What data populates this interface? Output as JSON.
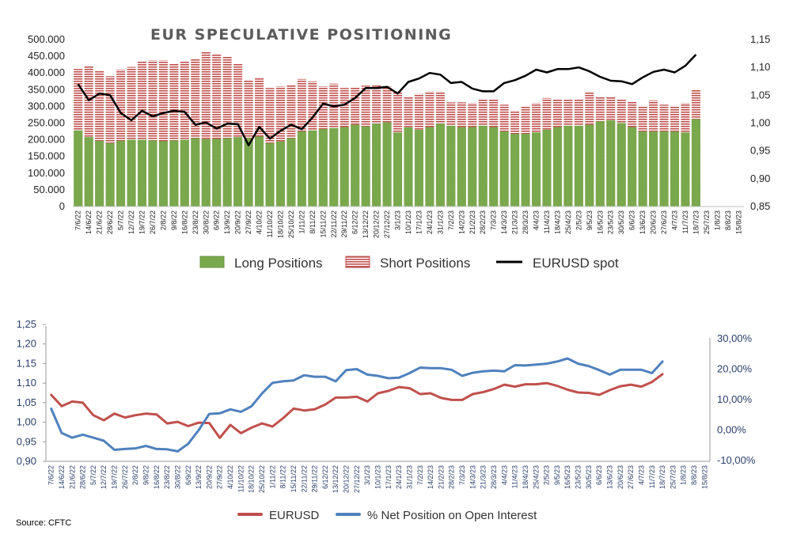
{
  "source": "Source: CFTC",
  "chart_data": [
    {
      "type": "bar",
      "stacked": true,
      "title": "EUR SPECULATIVE POSITIONING",
      "categories": [
        "7/6/22",
        "14/6/22",
        "21/6/22",
        "28/6/22",
        "5/7/22",
        "12/7/22",
        "19/7/22",
        "26/7/22",
        "2/8/22",
        "9/8/22",
        "16/8/22",
        "23/8/22",
        "30/8/22",
        "6/9/22",
        "13/9/22",
        "20/9/22",
        "27/9/22",
        "4/10/22",
        "11/10/22",
        "18/10/22",
        "25/10/22",
        "1/11/22",
        "8/11/22",
        "15/11/22",
        "22/11/22",
        "29/11/22",
        "6/12/22",
        "13/12/22",
        "20/12/22",
        "27/12/22",
        "3/1/23",
        "10/1/23",
        "17/1/23",
        "24/1/23",
        "31/1/23",
        "7/2/23",
        "14/2/23",
        "21/2/23",
        "28/2/23",
        "7/3/23",
        "14/3/23",
        "21/3/23",
        "28/3/23",
        "4/4/23",
        "11/4/23",
        "18/4/23",
        "25/4/23",
        "2/5/23",
        "9/5/23",
        "16/5/23",
        "23/5/23",
        "30/5/23",
        "6/6/23",
        "13/6/23",
        "20/6/23",
        "27/6/23",
        "4/7/23",
        "11/7/23",
        "18/7/23",
        "25/7/23",
        "1/8/23",
        "8/8/23",
        "15/8/23"
      ],
      "series": [
        {
          "name": "Long Positions",
          "color": "#7aa84d",
          "values": [
            228,
            208,
            197,
            190,
            197,
            200,
            200,
            198,
            196,
            198,
            200,
            205,
            202,
            203,
            205,
            208,
            205,
            210,
            190,
            195,
            205,
            225,
            228,
            232,
            235,
            238,
            245,
            240,
            248,
            252,
            222,
            237,
            230,
            238,
            248,
            242,
            238,
            238,
            242,
            238,
            225,
            218,
            218,
            222,
            230,
            238,
            242,
            242,
            245,
            255,
            258,
            250,
            238,
            225,
            225,
            225,
            225,
            222,
            262,
            null,
            null,
            null,
            null
          ]
        },
        {
          "name": "Short Positions",
          "color": "#c0504d",
          "values": [
            412,
            420,
            406,
            390,
            410,
            418,
            435,
            438,
            438,
            428,
            435,
            442,
            465,
            455,
            450,
            428,
            380,
            385,
            355,
            360,
            365,
            382,
            375,
            360,
            368,
            355,
            358,
            362,
            365,
            360,
            345,
            328,
            338,
            345,
            345,
            312,
            312,
            310,
            320,
            320,
            305,
            288,
            300,
            310,
            325,
            320,
            320,
            320,
            342,
            330,
            330,
            320,
            315,
            302,
            318,
            305,
            302,
            310,
            350,
            null,
            null,
            null,
            null
          ]
        },
        {
          "name": "EURUSD spot",
          "color": "#000000",
          "axis": "right",
          "values": [
            1.07,
            1.041,
            1.053,
            1.05,
            1.018,
            1.005,
            1.022,
            1.012,
            1.018,
            1.022,
            1.02,
            0.997,
            1.001,
            0.99,
            0.999,
            0.998,
            0.96,
            0.993,
            0.972,
            0.986,
            0.997,
            0.989,
            1.01,
            1.035,
            1.03,
            1.033,
            1.045,
            1.063,
            1.063,
            1.065,
            1.053,
            1.074,
            1.08,
            1.09,
            1.087,
            1.072,
            1.074,
            1.062,
            1.057,
            1.057,
            1.072,
            1.077,
            1.085,
            1.096,
            1.091,
            1.097,
            1.097,
            1.1,
            1.093,
            1.083,
            1.076,
            1.075,
            1.07,
            1.082,
            1.092,
            1.096,
            1.091,
            1.103,
            1.123,
            null,
            null,
            null,
            null
          ]
        }
      ],
      "y_left": {
        "ylim": [
          0,
          500000
        ],
        "ticks": [
          "0",
          "50.000",
          "100.000",
          "150.000",
          "200.000",
          "250.000",
          "300.000",
          "350.000",
          "400.000",
          "450.000",
          "500.000"
        ]
      },
      "y_right": {
        "ylim": [
          0.85,
          1.15
        ],
        "ticks": [
          "0,85",
          "0,90",
          "0,95",
          "1,00",
          "1,05",
          "1,10",
          "1,15"
        ]
      },
      "value_scale": 1000,
      "legend": {
        "position": "bottom",
        "items": [
          "Long Positions",
          "Short Positions",
          "EURUSD spot"
        ]
      },
      "grid": false
    },
    {
      "type": "line",
      "categories": [
        "7/6/22",
        "14/6/22",
        "21/6/22",
        "28/6/22",
        "5/7/22",
        "12/7/22",
        "19/7/22",
        "26/7/22",
        "2/8/22",
        "9/8/22",
        "16/8/22",
        "23/8/22",
        "30/8/22",
        "6/9/22",
        "13/9/22",
        "20/9/22",
        "27/9/22",
        "4/10/22",
        "11/10/22",
        "18/10/22",
        "25/10/22",
        "1/11/22",
        "8/11/22",
        "15/11/22",
        "22/11/22",
        "29/11/22",
        "6/12/22",
        "13/12/22",
        "20/12/22",
        "27/12/22",
        "3/1/23",
        "10/1/23",
        "17/1/23",
        "24/1/23",
        "31/1/23",
        "7/2/23",
        "14/2/23",
        "21/2/23",
        "28/2/23",
        "7/3/23",
        "14/3/23",
        "21/3/23",
        "28/3/23",
        "4/4/23",
        "11/4/23",
        "18/4/23",
        "25/4/23",
        "2/5/23",
        "9/5/23",
        "16/5/23",
        "23/5/23",
        "30/5/23",
        "6/6/23",
        "13/6/23",
        "20/6/23",
        "27/6/23",
        "4/7/23",
        "11/7/23",
        "18/7/23",
        "25/7/23",
        "1/8/23",
        "8/8/23",
        "15/8/23"
      ],
      "series": [
        {
          "name": "EURUSD",
          "color": "#c0504d",
          "axis": "left",
          "values": [
            1.07,
            1.041,
            1.053,
            1.05,
            1.018,
            1.005,
            1.022,
            1.012,
            1.018,
            1.022,
            1.02,
            0.997,
            1.001,
            0.99,
            0.999,
            0.998,
            0.96,
            0.993,
            0.972,
            0.986,
            0.997,
            0.989,
            1.01,
            1.035,
            1.03,
            1.033,
            1.045,
            1.063,
            1.063,
            1.065,
            1.053,
            1.074,
            1.08,
            1.09,
            1.087,
            1.072,
            1.074,
            1.062,
            1.057,
            1.057,
            1.072,
            1.077,
            1.085,
            1.096,
            1.091,
            1.097,
            1.097,
            1.1,
            1.093,
            1.083,
            1.076,
            1.075,
            1.07,
            1.082,
            1.092,
            1.096,
            1.091,
            1.103,
            1.123,
            null,
            null,
            null,
            null
          ]
        },
        {
          "name": "% Net Position on Open Interest",
          "color": "#4f81bd",
          "axis": "right",
          "values": [
            7,
            -1,
            -2.5,
            -1.5,
            -2.5,
            -3.5,
            -6.5,
            -6.2,
            -6,
            -5.2,
            -6.2,
            -6.3,
            -7,
            -4.5,
            0,
            5.3,
            5.5,
            6.8,
            6,
            7.8,
            12,
            15.5,
            16,
            16.3,
            18,
            17.5,
            17.5,
            16,
            19.7,
            20,
            18.2,
            17.8,
            17,
            17.2,
            18.7,
            20.5,
            20.3,
            20.3,
            19.8,
            17.8,
            18.8,
            19.3,
            19.5,
            19.3,
            21.3,
            21.2,
            21.5,
            21.8,
            22.5,
            23.5,
            21.8,
            21,
            19.7,
            18.2,
            19.8,
            19.8,
            19.8,
            18.7,
            22.5,
            null,
            null,
            null,
            null
          ]
        }
      ],
      "y_left": {
        "ylim": [
          0.9,
          1.25
        ],
        "ticks": [
          "0,90",
          "0,95",
          "1,00",
          "1,05",
          "1,10",
          "1,15",
          "1,20",
          "1,25"
        ]
      },
      "y_right": {
        "ylim": [
          -10,
          30
        ],
        "ticks": [
          "-10,00%",
          "0,00%",
          "10,00%",
          "20,00%",
          "30,00%"
        ]
      },
      "legend": {
        "position": "bottom",
        "items": [
          "EURUSD",
          "% Net Position on Open Interest"
        ]
      },
      "grid": false
    }
  ]
}
